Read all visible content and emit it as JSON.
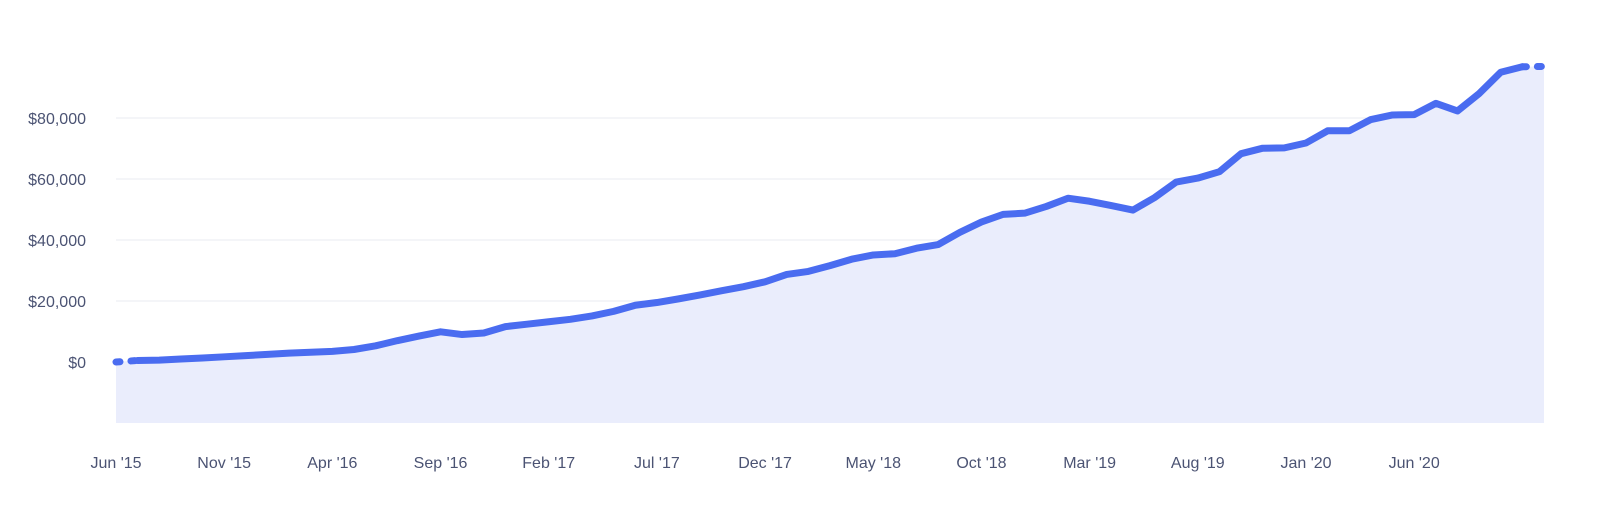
{
  "chart_data": {
    "type": "area",
    "title": "",
    "xlabel": "",
    "ylabel": "",
    "xlim": [
      "2015-06",
      "2020-12"
    ],
    "ylim": [
      -20000,
      100000
    ],
    "grid": true,
    "legend": "none",
    "colors": {
      "line": "#4a6cf0",
      "fill": "#eaedfc",
      "gridline": "#e9ebf2",
      "tick_text": "#4b5373"
    },
    "y_ticks": [
      {
        "value": 0,
        "label": "$0"
      },
      {
        "value": 20000,
        "label": "$20,000"
      },
      {
        "value": 40000,
        "label": "$40,000"
      },
      {
        "value": 60000,
        "label": "$60,000"
      },
      {
        "value": 80000,
        "label": "$80,000"
      }
    ],
    "x_ticks": [
      {
        "date": "2015-06",
        "label": "Jun '15"
      },
      {
        "date": "2015-11",
        "label": "Nov '15"
      },
      {
        "date": "2016-04",
        "label": "Apr '16"
      },
      {
        "date": "2016-09",
        "label": "Sep '16"
      },
      {
        "date": "2017-02",
        "label": "Feb '17"
      },
      {
        "date": "2017-07",
        "label": "Jul '17"
      },
      {
        "date": "2017-12",
        "label": "Dec '17"
      },
      {
        "date": "2018-05",
        "label": "May '18"
      },
      {
        "date": "2018-10",
        "label": "Oct '18"
      },
      {
        "date": "2019-03",
        "label": "Mar '19"
      },
      {
        "date": "2019-08",
        "label": "Aug '19"
      },
      {
        "date": "2020-01",
        "label": "Jan '20"
      },
      {
        "date": "2020-06",
        "label": "Jun '20"
      }
    ],
    "x": [
      "2015-06",
      "2015-07",
      "2015-08",
      "2015-09",
      "2015-10",
      "2015-11",
      "2015-12",
      "2016-01",
      "2016-02",
      "2016-03",
      "2016-04",
      "2016-05",
      "2016-06",
      "2016-07",
      "2016-08",
      "2016-09",
      "2016-10",
      "2016-11",
      "2016-12",
      "2017-01",
      "2017-02",
      "2017-03",
      "2017-04",
      "2017-05",
      "2017-06",
      "2017-07",
      "2017-08",
      "2017-09",
      "2017-10",
      "2017-11",
      "2017-12",
      "2018-01",
      "2018-02",
      "2018-03",
      "2018-04",
      "2018-05",
      "2018-06",
      "2018-07",
      "2018-08",
      "2018-09",
      "2018-10",
      "2018-11",
      "2018-12",
      "2019-01",
      "2019-02",
      "2019-03",
      "2019-04",
      "2019-05",
      "2019-06",
      "2019-07",
      "2019-08",
      "2019-09",
      "2019-10",
      "2019-11",
      "2019-12",
      "2020-01",
      "2020-02",
      "2020-03",
      "2020-04",
      "2020-05",
      "2020-06",
      "2020-07",
      "2020-08",
      "2020-09",
      "2020-10",
      "2020-11",
      "2020-12"
    ],
    "series": [
      {
        "values": [
          0,
          500,
          600,
          1000,
          1300,
          1700,
          2100,
          2500,
          2900,
          3200,
          3500,
          4100,
          5300,
          7000,
          8500,
          9900,
          9000,
          9500,
          11600,
          12400,
          13200,
          14000,
          15100,
          16600,
          18600,
          19500,
          20700,
          22000,
          23400,
          24700,
          26300,
          28700,
          29700,
          31600,
          33700,
          35100,
          35500,
          37300,
          38500,
          42500,
          45900,
          48400,
          48800,
          51000,
          53700,
          52700,
          51300,
          49800,
          53900,
          59000,
          60300,
          62400,
          68300,
          70100,
          70200,
          71800,
          75800,
          75800,
          79500,
          81000,
          81100,
          84800,
          82300,
          88000,
          95000,
          96800,
          96900
        ]
      }
    ]
  }
}
